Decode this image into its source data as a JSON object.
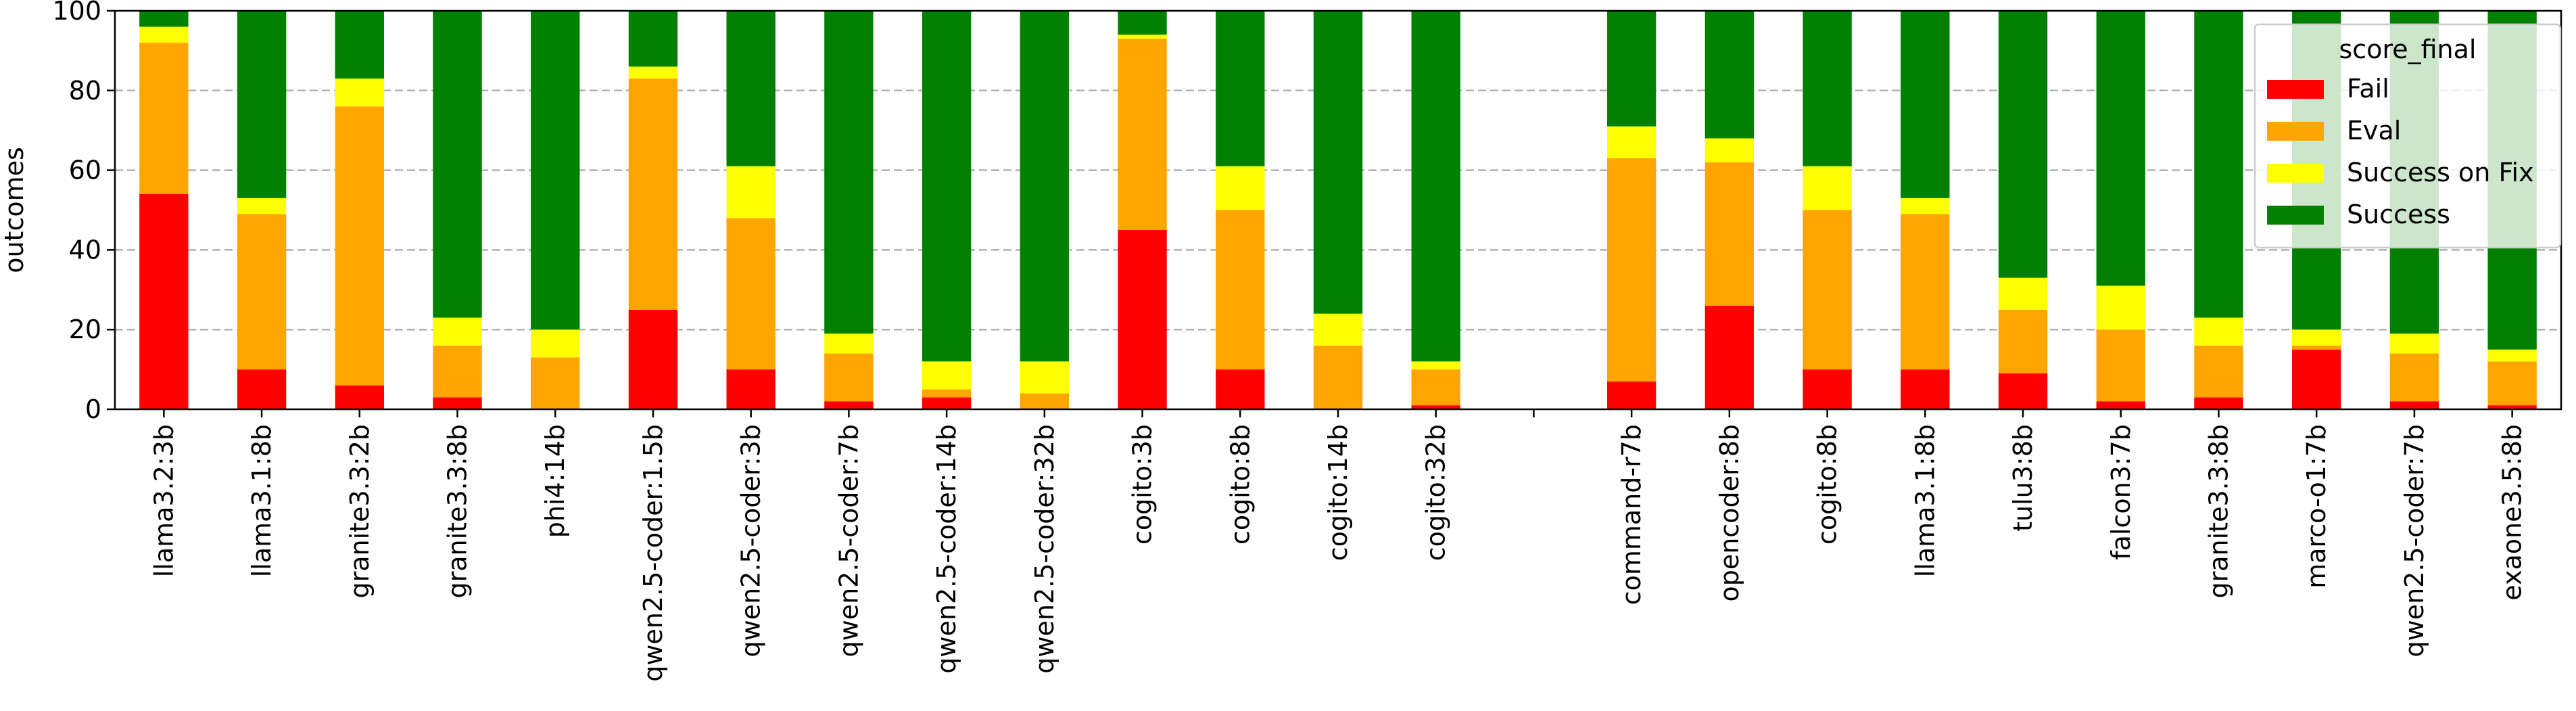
{
  "chart_data": {
    "type": "bar",
    "stacked": true,
    "title": "",
    "xlabel": "",
    "ylabel": "outcomes",
    "ylim": [
      0,
      100
    ],
    "yticks": [
      0,
      20,
      40,
      60,
      80,
      100
    ],
    "grid": "horizontal dashed",
    "legend": {
      "title": "score_final",
      "placement": "top-right"
    },
    "categories": [
      "llama3.2:3b",
      "llama3.1:8b",
      "granite3.3:2b",
      "granite3.3:8b",
      "phi4:14b",
      "qwen2.5-coder:1.5b",
      "qwen2.5-coder:3b",
      "qwen2.5-coder:7b",
      "qwen2.5-coder:14b",
      "qwen2.5-coder:32b",
      "cogito:3b",
      "cogito:8b",
      "cogito:14b",
      "cogito:32b",
      "",
      "command-r7b",
      "opencoder:8b",
      "cogito:8b",
      "llama3.1:8b",
      "tulu3:8b",
      "falcon3:7b",
      "granite3.3:8b",
      "marco-o1:7b",
      "qwen2.5-coder:7b",
      "exaone3.5:8b"
    ],
    "series": [
      {
        "name": "Fail",
        "color": "#ff0000",
        "values": [
          54,
          10,
          6,
          3,
          0,
          25,
          10,
          2,
          3,
          0,
          45,
          10,
          0,
          1,
          0,
          7,
          26,
          10,
          10,
          9,
          2,
          3,
          15,
          2,
          1
        ]
      },
      {
        "name": "Eval",
        "color": "#ffa500",
        "values": [
          38,
          39,
          70,
          13,
          13,
          58,
          38,
          12,
          2,
          4,
          48,
          40,
          16,
          9,
          0,
          56,
          36,
          40,
          39,
          16,
          18,
          13,
          1,
          12,
          11
        ]
      },
      {
        "name": "Success on Fix",
        "color": "#ffff00",
        "values": [
          4,
          4,
          7,
          7,
          7,
          3,
          13,
          5,
          7,
          8,
          1,
          11,
          8,
          2,
          0,
          8,
          6,
          11,
          4,
          8,
          11,
          7,
          4,
          5,
          3
        ]
      },
      {
        "name": "Success",
        "color": "#008000",
        "values": [
          4,
          47,
          17,
          77,
          80,
          14,
          39,
          81,
          88,
          88,
          6,
          39,
          76,
          88,
          0,
          29,
          32,
          39,
          47,
          67,
          69,
          77,
          80,
          81,
          85
        ]
      }
    ]
  }
}
